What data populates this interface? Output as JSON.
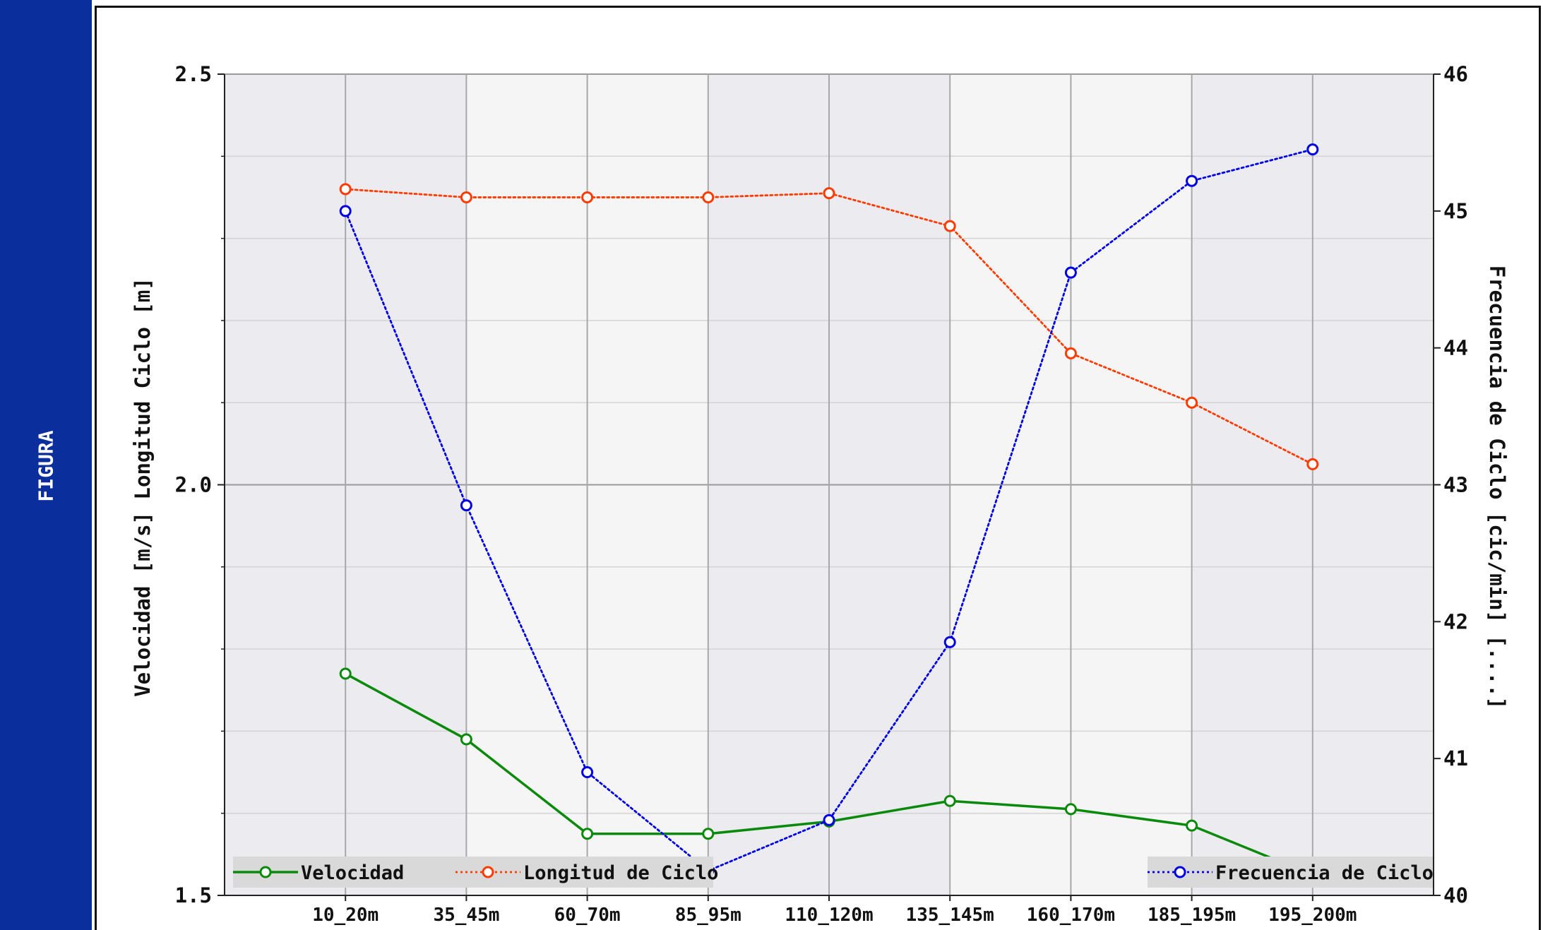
{
  "sidebar": {
    "label": "FIGURA"
  },
  "colors": {
    "sidebar": "#0a2f9c",
    "velocidad": "#0a8a0a",
    "longitud": "#ff3b00",
    "frecuencia": "#0000e6",
    "band_dark": "#ebebf0",
    "band_light": "#f5f5f5",
    "legend_bg": "#d9d9d9"
  },
  "chart_data": {
    "type": "line",
    "categories": [
      "10_20m",
      "35_45m",
      "60_70m",
      "85_95m",
      "110_120m",
      "135_145m",
      "160_170m",
      "185_195m",
      "195_200m"
    ],
    "ylabel_left": "Velocidad [m/s]  Longitud Ciclo [m]",
    "ylabel_right": "Frecuencia de Ciclo [cic/min] [....]",
    "ylim_left": [
      1.5,
      2.5
    ],
    "ylim_right": [
      40,
      46
    ],
    "yticks_left": [
      "1.5",
      "2.0",
      "2.5"
    ],
    "yticks_right": [
      "40",
      "41",
      "42",
      "43",
      "44",
      "45",
      "46"
    ],
    "grid": true,
    "series": [
      {
        "name": "Velocidad",
        "axis": "left",
        "style": "solid",
        "values": [
          1.77,
          1.69,
          1.575,
          1.575,
          1.59,
          1.615,
          1.605,
          1.585,
          1.525
        ]
      },
      {
        "name": "Longitud de Ciclo",
        "axis": "left",
        "style": "dotted",
        "values": [
          2.36,
          2.35,
          2.35,
          2.35,
          2.355,
          2.315,
          2.16,
          2.1,
          2.025
        ]
      },
      {
        "name": "Frecuencia de Ciclo",
        "axis": "right",
        "style": "dotted",
        "values": [
          45.0,
          42.85,
          40.9,
          40.18,
          40.55,
          41.85,
          44.55,
          45.22,
          45.45
        ]
      }
    ],
    "legend": {
      "left": [
        "Velocidad",
        "Longitud de Ciclo"
      ],
      "right": [
        "Frecuencia de Ciclo"
      ],
      "placement": "bottom"
    }
  }
}
